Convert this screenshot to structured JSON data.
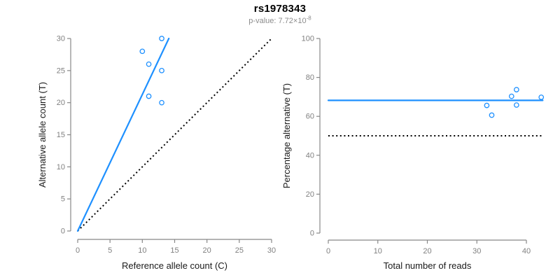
{
  "title": "rs1978343",
  "subtitle": {
    "text": "p-value: 7.72×10",
    "exponent": "-8"
  },
  "colors": {
    "accent_blue": "#1e90ff",
    "reference_black": "#000000",
    "axis_gray": "#888888",
    "tick_label_gray": "#808080",
    "axis_title_color": "#1a1a1a",
    "subtitle_gray": "#8c8c8c",
    "background": "#ffffff"
  },
  "chart_data": [
    {
      "type": "scatter",
      "name": "allele-counts-panel",
      "xlabel": "Reference allele count (C)",
      "ylabel": "Alternative allele count (T)",
      "xlim": [
        0,
        30
      ],
      "ylim": [
        0,
        30
      ],
      "xticks": [
        0,
        5,
        10,
        15,
        20,
        25,
        30
      ],
      "yticks": [
        0,
        5,
        10,
        15,
        20,
        25,
        30
      ],
      "grid": false,
      "legend": "none",
      "points": [
        [
          10,
          28
        ],
        [
          11,
          26
        ],
        [
          11,
          21
        ],
        [
          13,
          30
        ],
        [
          13,
          25
        ],
        [
          13,
          20
        ]
      ],
      "fit_line": {
        "style": "solid",
        "x": [
          0,
          14.1
        ],
        "y": [
          0,
          30
        ],
        "description": "fitted allelic-imbalance line through origin, slope ~2.13"
      },
      "identity_line": {
        "style": "dotted",
        "x": [
          0,
          30
        ],
        "y": [
          0,
          30
        ],
        "description": "y = x balanced-allele reference"
      }
    },
    {
      "type": "scatter",
      "name": "percentage-vs-reads-panel",
      "xlabel": "Total number of reads",
      "ylabel": "Percentage alternative (T)",
      "xlim": [
        0,
        43.5
      ],
      "ylim": [
        0,
        100
      ],
      "xticks": [
        0,
        10,
        20,
        30,
        40
      ],
      "yticks": [
        0,
        20,
        40,
        60,
        80,
        100
      ],
      "grid": false,
      "legend": "none",
      "points": [
        [
          32,
          65.6
        ],
        [
          33,
          60.6
        ],
        [
          37,
          70.3
        ],
        [
          38,
          73.7
        ],
        [
          38,
          65.8
        ],
        [
          43,
          69.8
        ]
      ],
      "fit_line": {
        "style": "solid",
        "x": [
          0,
          43.3
        ],
        "y": [
          68.2,
          68.2
        ],
        "description": "mean percentage alternative ~68%"
      },
      "identity_line": {
        "style": "dotted",
        "x": [
          0,
          43.3
        ],
        "y": [
          50,
          50
        ],
        "description": "50% balanced expectation"
      }
    }
  ]
}
